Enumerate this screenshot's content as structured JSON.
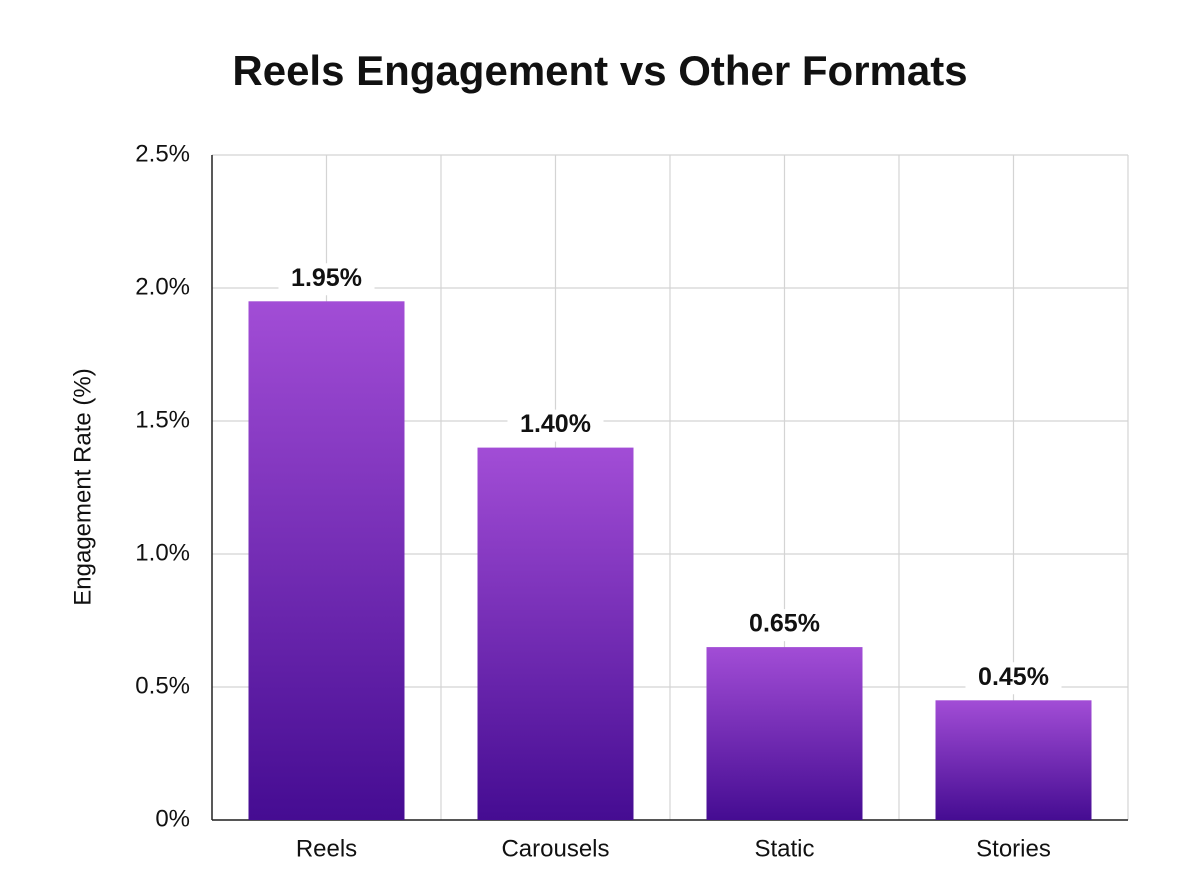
{
  "chart_data": {
    "type": "bar",
    "title": "Reels Engagement vs Other Formats",
    "y_label": "Engagement Rate (%)",
    "categories": [
      "Reels",
      "Carousels",
      "Static",
      "Stories"
    ],
    "values": [
      1.95,
      1.4,
      0.65,
      0.45
    ],
    "value_labels": [
      "1.95%",
      "1.40%",
      "0.65%",
      "0.45%"
    ],
    "color": "#a24dd6",
    "ylim": [
      0,
      2.5
    ],
    "yticks": [
      {
        "value": 0,
        "label": "0%"
      },
      {
        "value": 0.5,
        "label": "0.5%"
      },
      {
        "value": 1.0,
        "label": "1.0%"
      },
      {
        "value": 1.5,
        "label": "1.5%"
      },
      {
        "value": 2.0,
        "label": "2.0%"
      },
      {
        "value": 2.5,
        "label": "2.5%"
      }
    ],
    "grid": true
  }
}
